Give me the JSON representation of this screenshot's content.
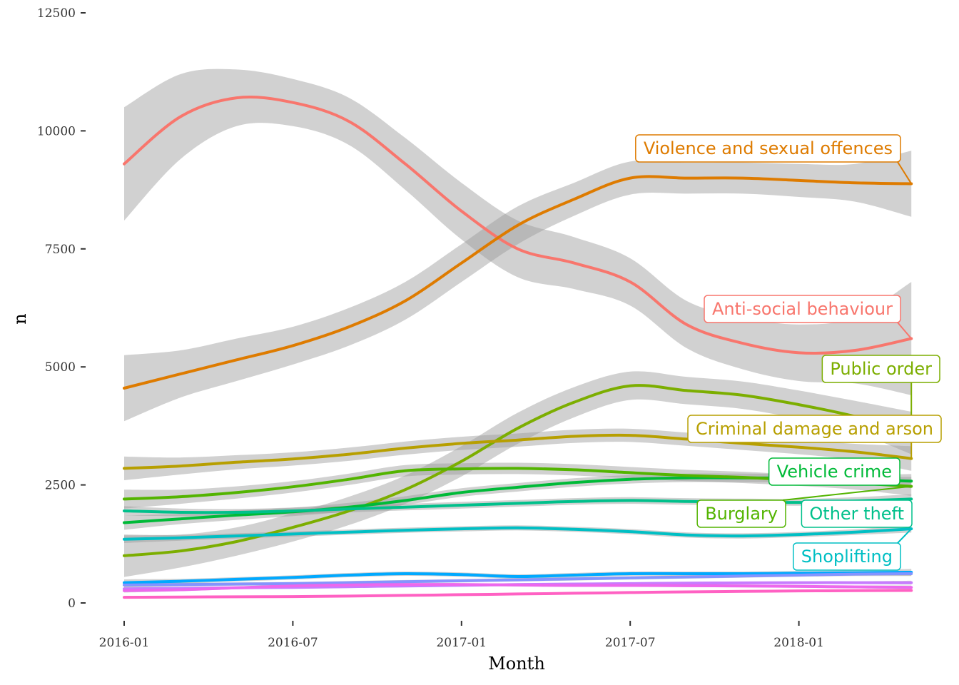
{
  "chart_data": {
    "type": "line",
    "xlabel": "Month",
    "ylabel": "n",
    "xlim": [
      "2016-01",
      "2018-05"
    ],
    "ylim": [
      0,
      12500
    ],
    "x_ticks": [
      "2016-01",
      "2016-07",
      "2017-01",
      "2017-07",
      "2018-01"
    ],
    "y_ticks": [
      0,
      2500,
      5000,
      7500,
      10000,
      12500
    ],
    "grid": false,
    "legend": "direct labels at right",
    "x": [
      "2016-01",
      "2016-03",
      "2016-05",
      "2016-07",
      "2016-09",
      "2016-11",
      "2017-01",
      "2017-03",
      "2017-05",
      "2017-07",
      "2017-09",
      "2017-11",
      "2018-01",
      "2018-03",
      "2018-05"
    ],
    "series": [
      {
        "name": "Anti-social behaviour",
        "color": "#F8766D",
        "values": [
          9300,
          10300,
          10700,
          10600,
          10200,
          9300,
          8300,
          7500,
          7200,
          6800,
          5900,
          5500,
          5300,
          5350,
          5600
        ],
        "band": [
          1200,
          900,
          600,
          500,
          500,
          550,
          600,
          600,
          550,
          500,
          500,
          550,
          600,
          700,
          1200
        ]
      },
      {
        "name": "Violence and sexual offences",
        "color": "#DE7B00",
        "values": [
          4550,
          4850,
          5150,
          5450,
          5850,
          6400,
          7200,
          8000,
          8550,
          9000,
          9000,
          9000,
          8950,
          8900,
          8880
        ],
        "band": [
          700,
          500,
          450,
          400,
          400,
          400,
          400,
          400,
          350,
          350,
          330,
          330,
          350,
          400,
          700
        ]
      },
      {
        "name": "Public order",
        "color": "#7CAE00",
        "values": [
          1000,
          1100,
          1300,
          1600,
          1950,
          2400,
          3000,
          3700,
          4250,
          4600,
          4500,
          4400,
          4200,
          3950,
          3600
        ],
        "band": [
          450,
          350,
          300,
          300,
          300,
          300,
          320,
          330,
          320,
          300,
          290,
          290,
          300,
          330,
          450
        ]
      },
      {
        "name": "Criminal damage and arson",
        "color": "#B79F00",
        "values": [
          2850,
          2900,
          2980,
          3050,
          3150,
          3280,
          3380,
          3450,
          3530,
          3550,
          3470,
          3380,
          3300,
          3200,
          3060
        ],
        "band": [
          250,
          180,
          150,
          140,
          140,
          140,
          140,
          140,
          140,
          140,
          140,
          140,
          150,
          170,
          260
        ]
      },
      {
        "name": "Vehicle crime",
        "color": "#00BA38",
        "values": [
          1700,
          1780,
          1860,
          1930,
          2030,
          2170,
          2340,
          2450,
          2550,
          2620,
          2650,
          2650,
          2640,
          2620,
          2580
        ],
        "band": [
          150,
          110,
          100,
          90,
          90,
          90,
          90,
          90,
          90,
          90,
          90,
          90,
          90,
          100,
          150
        ]
      },
      {
        "name": "Burglary",
        "color": "#53B400",
        "values": [
          2200,
          2250,
          2340,
          2460,
          2620,
          2800,
          2840,
          2850,
          2820,
          2760,
          2700,
          2660,
          2600,
          2540,
          2470
        ],
        "band": [
          200,
          150,
          130,
          120,
          120,
          120,
          120,
          120,
          120,
          120,
          120,
          120,
          120,
          140,
          200
        ]
      },
      {
        "name": "Other theft",
        "color": "#00C08B",
        "values": [
          1950,
          1920,
          1920,
          1950,
          1990,
          2030,
          2070,
          2110,
          2150,
          2170,
          2150,
          2140,
          2130,
          2160,
          2200
        ],
        "band": [
          100,
          80,
          70,
          70,
          70,
          70,
          70,
          70,
          70,
          70,
          70,
          70,
          70,
          80,
          100
        ]
      },
      {
        "name": "Shoplifting",
        "color": "#00BFC4",
        "values": [
          1350,
          1380,
          1420,
          1460,
          1500,
          1540,
          1570,
          1590,
          1560,
          1510,
          1440,
          1420,
          1450,
          1500,
          1570
        ],
        "band": [
          80,
          60,
          55,
          55,
          55,
          55,
          55,
          55,
          55,
          55,
          55,
          55,
          55,
          60,
          80
        ]
      },
      {
        "name": "",
        "color": "#00A9FF",
        "values": [
          430,
          460,
          500,
          540,
          590,
          620,
          600,
          560,
          590,
          620,
          620,
          620,
          630,
          640,
          650
        ],
        "band": [
          70,
          50,
          45,
          45,
          45,
          45,
          45,
          45,
          45,
          45,
          45,
          45,
          45,
          50,
          70
        ]
      },
      {
        "name": "",
        "color": "#8494FF",
        "values": [
          380,
          390,
          400,
          410,
          430,
          450,
          470,
          490,
          510,
          530,
          550,
          570,
          590,
          610,
          620
        ],
        "band": [
          50,
          40,
          35,
          35,
          35,
          35,
          35,
          35,
          35,
          35,
          35,
          35,
          35,
          40,
          50
        ]
      },
      {
        "name": "",
        "color": "#C77CFF",
        "values": [
          300,
          310,
          320,
          330,
          345,
          360,
          375,
          390,
          400,
          410,
          420,
          425,
          430,
          430,
          430
        ],
        "band": [
          40,
          30,
          28,
          28,
          28,
          28,
          28,
          28,
          28,
          28,
          28,
          28,
          28,
          30,
          40
        ]
      },
      {
        "name": "",
        "color": "#ED68ED",
        "values": [
          260,
          280,
          320,
          360,
          380,
          390,
          390,
          380,
          370,
          370,
          365,
          360,
          350,
          340,
          330
        ],
        "band": [
          40,
          30,
          28,
          28,
          28,
          28,
          28,
          28,
          28,
          28,
          28,
          28,
          28,
          30,
          40
        ]
      },
      {
        "name": "",
        "color": "#FF61C3",
        "values": [
          120,
          125,
          130,
          135,
          145,
          160,
          175,
          190,
          205,
          220,
          235,
          245,
          255,
          260,
          265
        ],
        "band": [
          30,
          25,
          20,
          20,
          20,
          20,
          20,
          20,
          20,
          20,
          20,
          20,
          20,
          25,
          30
        ]
      }
    ],
    "labels": [
      {
        "text": "Violence and sexual offences",
        "color": "#DE7B00",
        "series": "Violence and sexual offences"
      },
      {
        "text": "Anti-social behaviour",
        "color": "#F8766D",
        "series": "Anti-social behaviour"
      },
      {
        "text": "Public order",
        "color": "#7CAE00",
        "series": "Public order"
      },
      {
        "text": "Criminal damage and arson",
        "color": "#B79F00",
        "series": "Criminal damage and arson"
      },
      {
        "text": "Vehicle crime",
        "color": "#00BA38",
        "series": "Vehicle crime"
      },
      {
        "text": "Burglary",
        "color": "#53B400",
        "series": "Burglary"
      },
      {
        "text": "Other theft",
        "color": "#00C08B",
        "series": "Other theft"
      },
      {
        "text": "Shoplifting",
        "color": "#00BFC4",
        "series": "Shoplifting"
      }
    ]
  }
}
